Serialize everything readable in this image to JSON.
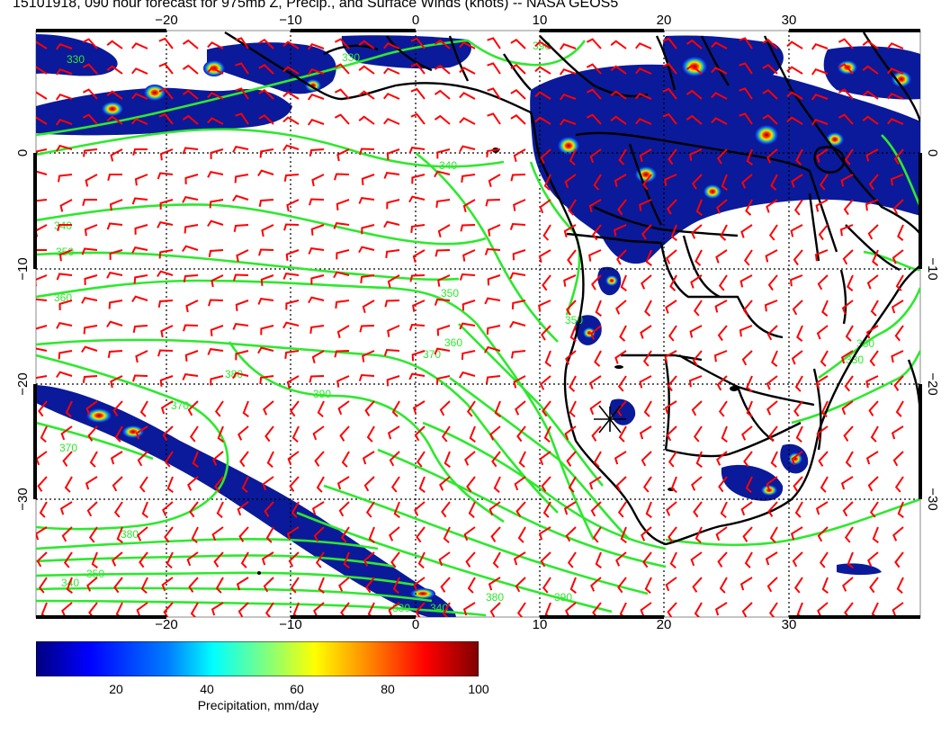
{
  "title": "15101918, 090 hour forecast for 975mb Z, Precip., and Surface Winds (knots) -- NASA GEOS5",
  "map": {
    "lon_ticks": [
      "−20",
      "−10",
      "0",
      "10",
      "20",
      "30"
    ],
    "lat_ticks": [
      "0",
      "−10",
      "−20",
      "−30"
    ],
    "contour_labels": [
      "330",
      "340",
      "350",
      "360",
      "350",
      "360",
      "370",
      "380",
      "390",
      "370",
      "370",
      "380",
      "350",
      "340",
      "330",
      "340",
      "380",
      "390",
      "340",
      "350",
      "330",
      "360",
      "330",
      "390"
    ],
    "colors": {
      "contour": "#2ee82e",
      "wind_barb": "#ff0000",
      "coast": "#000000",
      "precip_low": "#0a1a9a",
      "precip_high": "#8b0000"
    },
    "marker_icon": "x-marker-icon"
  },
  "colorbar": {
    "title": "Precipitation, mm/day",
    "labels": [
      "20",
      "40",
      "60",
      "80",
      "100"
    ],
    "colors": [
      "#00007f",
      "#0000ff",
      "#007fff",
      "#00ffff",
      "#7fff7f",
      "#ffff00",
      "#ff7f00",
      "#ff0000",
      "#7f0000"
    ]
  }
}
